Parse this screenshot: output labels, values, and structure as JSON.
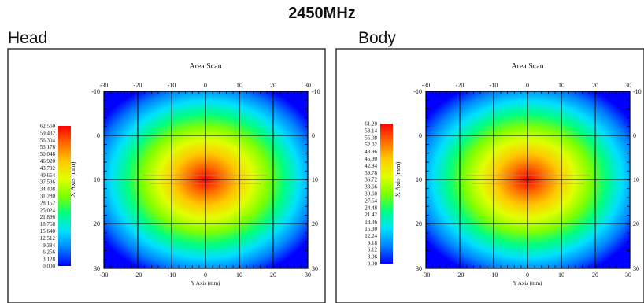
{
  "page": {
    "frequency_title": "2450MHz"
  },
  "panels": [
    {
      "label": "Head"
    },
    {
      "label": "Body"
    }
  ],
  "colors": {
    "colormap": [
      "#0000ff",
      "#0080ff",
      "#00e0ff",
      "#00ff80",
      "#80ff00",
      "#e0ff00",
      "#ffc800",
      "#ff6a00",
      "#ff0000"
    ],
    "grid_line": "#000000",
    "frame": "#2a2a2a"
  },
  "chart_data": [
    {
      "type": "heatmap",
      "title": "Area Scan",
      "xlabel": "Y Axis (mm)",
      "ylabel": "X Axis (mm)",
      "xlim": [
        -30,
        30
      ],
      "ylim": [
        -10,
        30
      ],
      "x_ticks": [
        "-30",
        "-20",
        "-10",
        "0",
        "10",
        "20",
        "30"
      ],
      "y_ticks": [
        "-10",
        "0",
        "10",
        "20",
        "30"
      ],
      "grid": true,
      "peak": {
        "x": 0,
        "y": 10,
        "value": 62.56
      },
      "colorbar_ticks": [
        "62.560",
        "59.432",
        "56.304",
        "53.176",
        "50.048",
        "46.920",
        "43.792",
        "40.664",
        "37.536",
        "34.408",
        "31.280",
        "28.152",
        "25.024",
        "21.896",
        "18.768",
        "15.640",
        "12.512",
        "9.384",
        "6.256",
        "3.128",
        "0.000"
      ]
    },
    {
      "type": "heatmap",
      "title": "Area Scan",
      "xlabel": "Y Axis (mm)",
      "ylabel": "X Axis (mm)",
      "xlim": [
        -30,
        30
      ],
      "ylim": [
        -10,
        30
      ],
      "x_ticks": [
        "-30",
        "-20",
        "-10",
        "0",
        "10",
        "20",
        "30"
      ],
      "y_ticks": [
        "-10",
        "0",
        "10",
        "20",
        "30"
      ],
      "grid": true,
      "peak": {
        "x": 0,
        "y": 10,
        "value": 61.2
      },
      "colorbar_ticks": [
        "61.20",
        "58.14",
        "55.08",
        "52.02",
        "48.96",
        "45.90",
        "42.84",
        "39.78",
        "36.72",
        "33.66",
        "30.60",
        "27.54",
        "24.48",
        "21.42",
        "18.36",
        "15.30",
        "12.24",
        "9.18",
        "6.12",
        "3.06",
        "0.00"
      ]
    }
  ]
}
